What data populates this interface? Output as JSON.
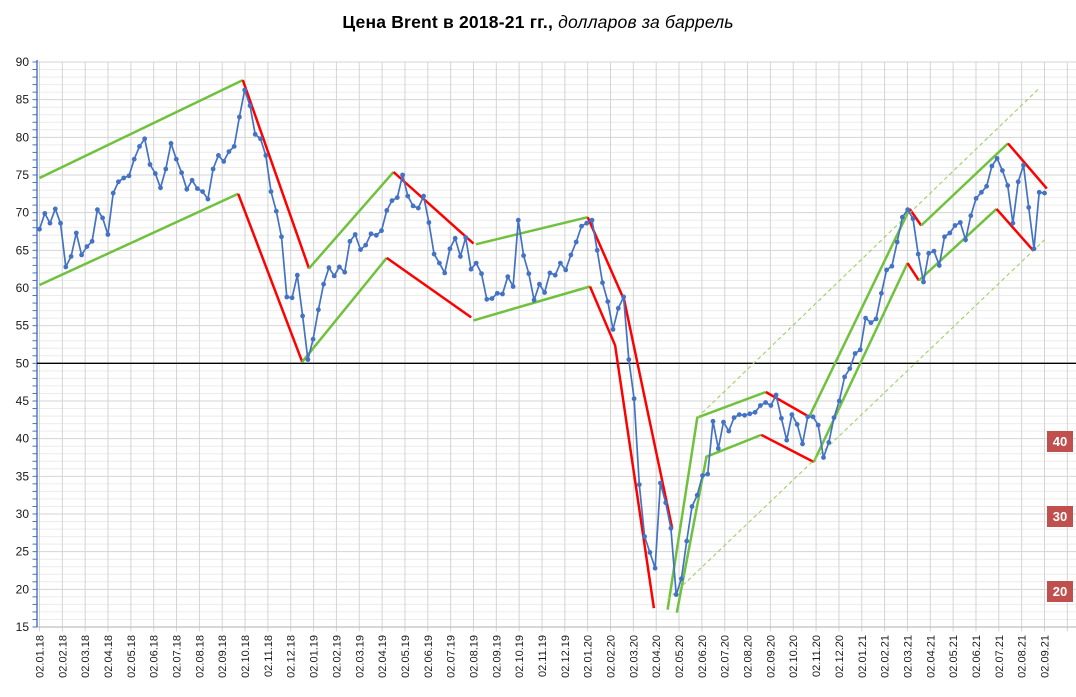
{
  "title": {
    "bold": "Цена Brent в 2018-21 гг.,",
    "italic": " долларов за баррель"
  },
  "chart_data": {
    "type": "line",
    "title": "Цена Brent в 2018-21 гг., долларов за баррель",
    "xlabel": "",
    "ylabel": "",
    "ylim": [
      15,
      90
    ],
    "y_tick_step_major": 5,
    "y_tick_step_minor": 1,
    "grid": "on",
    "legend": "none",
    "y_tick_labels": [
      90,
      85,
      80,
      75,
      70,
      65,
      60,
      55,
      50,
      45,
      40,
      35,
      30,
      25,
      20,
      15
    ],
    "x_tick_labels": [
      "02.01.18",
      "02.02.18",
      "02.03.18",
      "02.04.18",
      "02.05.18",
      "02.06.18",
      "02.07.18",
      "02.08.18",
      "02.09.18",
      "02.10.18",
      "02.11.18",
      "02.12.18",
      "02.01.19",
      "02.02.19",
      "02.03.19",
      "02.04.19",
      "02.05.19",
      "02.06.19",
      "02.07.19",
      "02.08.19",
      "02.09.19",
      "02.10.19",
      "02.11.19",
      "02.12.19",
      "02.01.20",
      "02.02.20",
      "02.03.20",
      "02.04.20",
      "02.05.20",
      "02.06.20",
      "02.07.20",
      "02.08.20",
      "02.09.20",
      "02.10.20",
      "02.11.20",
      "02.12.20",
      "02.01.21",
      "02.02.21",
      "02.03.21",
      "02.04.21",
      "02.05.21",
      "02.06.21",
      "02.07.21",
      "02.08.21",
      "02.09.21"
    ],
    "x_range_months": 44,
    "series": [
      {
        "name": "Brent",
        "sampling": "weekly",
        "marker": "circle",
        "values": [
          67.8,
          69.9,
          68.6,
          70.5,
          68.6,
          62.8,
          64.2,
          67.3,
          64.4,
          65.5,
          66.2,
          70.4,
          69.3,
          67.1,
          72.6,
          74.1,
          74.6,
          74.9,
          77.1,
          78.8,
          79.8,
          76.4,
          75.2,
          73.3,
          75.8,
          79.2,
          77.1,
          75.3,
          73.1,
          74.3,
          73.2,
          72.8,
          71.8,
          75.8,
          77.6,
          76.8,
          78.1,
          78.8,
          82.7,
          86.3,
          84.2,
          80.4,
          79.8,
          77.6,
          72.8,
          70.2,
          66.8,
          58.8,
          58.7,
          61.7,
          56.3,
          50.5,
          53.2,
          57.1,
          60.5,
          62.7,
          61.6,
          62.8,
          62.1,
          66.2,
          67.1,
          65.1,
          65.7,
          67.2,
          67.0,
          67.6,
          70.3,
          71.6,
          72.0,
          75.0,
          72.2,
          70.9,
          70.6,
          72.2,
          68.7,
          64.5,
          63.3,
          62.0,
          65.2,
          66.6,
          64.2,
          66.7,
          62.5,
          63.3,
          61.9,
          58.5,
          58.6,
          59.3,
          59.2,
          61.5,
          60.2,
          69.0,
          64.3,
          61.9,
          58.4,
          60.5,
          59.4,
          62.0,
          61.7,
          63.3,
          62.4,
          64.4,
          66.1,
          68.2,
          68.6,
          69.0,
          65.0,
          60.7,
          58.2,
          54.5,
          57.3,
          58.8,
          50.5,
          45.3,
          33.9,
          27.0,
          24.9,
          22.8,
          34.1,
          31.5,
          28.1,
          19.3,
          21.4,
          26.4,
          31.0,
          32.5,
          35.1,
          35.3,
          42.3,
          38.7,
          42.2,
          41.0,
          42.8,
          43.2,
          43.1,
          43.3,
          43.5,
          44.4,
          44.8,
          44.4,
          45.8,
          42.7,
          39.8,
          43.2,
          41.9,
          39.3,
          42.9,
          42.9,
          41.8,
          37.5,
          39.5,
          42.8,
          45.0,
          48.2,
          49.3,
          51.3,
          51.8,
          56.0,
          55.4,
          55.9,
          59.3,
          62.4,
          62.9,
          66.1,
          69.4,
          70.4,
          69.2,
          64.5,
          60.8,
          64.6,
          64.9,
          63.0,
          66.8,
          67.3,
          68.3,
          68.7,
          66.4,
          69.6,
          71.9,
          72.7,
          73.5,
          76.2,
          77.2,
          75.6,
          73.6,
          68.6,
          74.1,
          76.3,
          70.7,
          65.2,
          72.7,
          72.6
        ]
      }
    ],
    "reference_line": {
      "value": 50
    },
    "trend_segments": [
      {
        "kind": "up",
        "points": [
          [
            0,
            74.6
          ],
          [
            8.9,
            87.6
          ]
        ]
      },
      {
        "kind": "up",
        "points": [
          [
            0,
            60.4
          ],
          [
            8.7,
            72.5
          ]
        ]
      },
      {
        "kind": "down",
        "points": [
          [
            8.9,
            87.6
          ],
          [
            11.8,
            62.6
          ]
        ]
      },
      {
        "kind": "down",
        "points": [
          [
            8.7,
            72.5
          ],
          [
            11.5,
            50.2
          ]
        ]
      },
      {
        "kind": "up",
        "points": [
          [
            11.8,
            62.6
          ],
          [
            15.5,
            75.4
          ]
        ]
      },
      {
        "kind": "up",
        "points": [
          [
            11.5,
            50.2
          ],
          [
            15.2,
            64.0
          ]
        ]
      },
      {
        "kind": "down",
        "points": [
          [
            15.5,
            75.4
          ],
          [
            19.0,
            65.9
          ]
        ]
      },
      {
        "kind": "down",
        "points": [
          [
            15.2,
            64.0
          ],
          [
            18.9,
            56.1
          ]
        ]
      },
      {
        "kind": "up",
        "points": [
          [
            19.1,
            65.8
          ],
          [
            24.0,
            69.4
          ]
        ]
      },
      {
        "kind": "up",
        "points": [
          [
            19.0,
            55.7
          ],
          [
            24.1,
            60.2
          ]
        ]
      },
      {
        "kind": "down",
        "points": [
          [
            24.0,
            69.4
          ],
          [
            25.6,
            58.4
          ],
          [
            27.7,
            28.1
          ]
        ]
      },
      {
        "kind": "down",
        "points": [
          [
            24.1,
            60.2
          ],
          [
            25.2,
            52.4
          ],
          [
            26.9,
            17.5
          ]
        ]
      },
      {
        "kind": "up",
        "points": [
          [
            27.5,
            17.3
          ],
          [
            28.8,
            42.8
          ],
          [
            31.8,
            46.2
          ]
        ]
      },
      {
        "kind": "up",
        "points": [
          [
            27.9,
            16.9
          ],
          [
            29.2,
            37.6
          ],
          [
            31.6,
            40.5
          ]
        ]
      },
      {
        "kind": "down",
        "points": [
          [
            31.8,
            46.2
          ],
          [
            33.7,
            42.9
          ]
        ]
      },
      {
        "kind": "down",
        "points": [
          [
            31.6,
            40.5
          ],
          [
            33.9,
            36.9
          ]
        ]
      },
      {
        "kind": "up",
        "points": [
          [
            33.7,
            42.9
          ],
          [
            38.1,
            70.5
          ]
        ]
      },
      {
        "kind": "up",
        "points": [
          [
            33.9,
            36.9
          ],
          [
            38.0,
            63.3
          ]
        ]
      },
      {
        "kind": "down",
        "points": [
          [
            38.1,
            70.5
          ],
          [
            38.6,
            68.3
          ]
        ]
      },
      {
        "kind": "down",
        "points": [
          [
            38.0,
            63.3
          ],
          [
            38.5,
            61.0
          ]
        ]
      },
      {
        "kind": "up",
        "points": [
          [
            38.6,
            68.3
          ],
          [
            42.4,
            79.2
          ]
        ]
      },
      {
        "kind": "up",
        "points": [
          [
            38.5,
            61.0
          ],
          [
            41.9,
            70.5
          ]
        ]
      },
      {
        "kind": "down",
        "points": [
          [
            42.4,
            79.2
          ],
          [
            44.1,
            73.2
          ]
        ]
      },
      {
        "kind": "down",
        "points": [
          [
            41.9,
            70.5
          ],
          [
            43.5,
            65.0
          ]
        ]
      },
      {
        "kind": "projection",
        "points": [
          [
            28.8,
            42.8
          ],
          [
            43.8,
            86.6
          ]
        ]
      },
      {
        "kind": "projection",
        "points": [
          [
            27.5,
            18.6
          ],
          [
            44.0,
            66.4
          ]
        ]
      }
    ],
    "right_badges": [
      {
        "label": "40",
        "value": 40
      },
      {
        "label": "30",
        "value": 30
      },
      {
        "label": "20",
        "value": 20
      }
    ],
    "colors": {
      "price_line": "#4472C4",
      "trend_up": "#6FC13E",
      "trend_down": "#FF0000",
      "trend_projection": "#9CD169",
      "reference_line": "#000000",
      "badge_bg": "#C0504D",
      "badge_text": "#FFFFFF",
      "grid_major": "#D4D4D4",
      "grid_minor": "#ECECEC",
      "y_axis": "#4472C4",
      "x_axis": "#BFBFBF",
      "tick_text": "#1a1a1a"
    }
  }
}
